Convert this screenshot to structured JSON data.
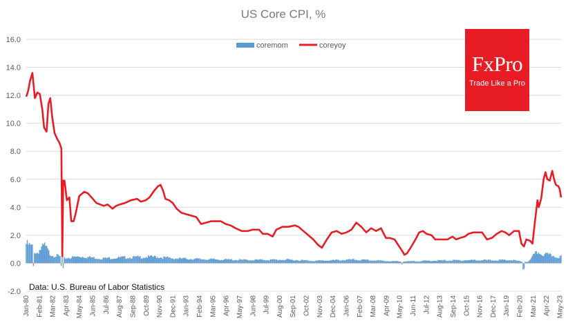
{
  "chart_data": {
    "type": "bar+line",
    "title": "US Core CPI, %",
    "source": "Data: U.S. Bureau of Labor Statistics",
    "ylim": [
      -2.0,
      16.0
    ],
    "yticks": [
      "-2.0",
      "0.0",
      "2.0",
      "4.0",
      "6.0",
      "8.0",
      "10.0",
      "12.0",
      "14.0",
      "16.0"
    ],
    "xticks": [
      "Jan-80",
      "Feb-81",
      "Mar-82",
      "Apr-83",
      "May-84",
      "Jun-85",
      "Jul-86",
      "Aug-87",
      "Sep-88",
      "Oct-89",
      "Nov-90",
      "Dec-91",
      "Jan-93",
      "Feb-94",
      "Mar-95",
      "Apr-96",
      "May-97",
      "Jun-98",
      "Jul-99",
      "Aug-00",
      "Sep-01",
      "Oct-02",
      "Nov-03",
      "Dec-04",
      "Jan-06",
      "Feb-07",
      "Mar-08",
      "Apr-09",
      "May-10",
      "Jun-11",
      "Jul-12",
      "Aug-13",
      "Sep-14",
      "Oct-15",
      "Nov-16",
      "Dec-17",
      "Jan-19",
      "Feb-20",
      "Mar-21",
      "Apr-22",
      "May-23"
    ],
    "legend_position": "top-center",
    "grid": "horizontal",
    "colors": {
      "coremom": "#5b9bd5",
      "coreyoy": "#e81c24"
    },
    "series": [
      {
        "name": "coremom",
        "type": "bar",
        "anchors": [
          [
            1980.0,
            1.2
          ],
          [
            1980.5,
            1.0
          ],
          [
            1980.8,
            0.6
          ],
          [
            1981.2,
            0.9
          ],
          [
            1981.5,
            1.1
          ],
          [
            1981.9,
            0.6
          ],
          [
            1982.2,
            0.5
          ],
          [
            1982.6,
            0.45
          ],
          [
            1983.0,
            0.3
          ],
          [
            1983.5,
            0.35
          ],
          [
            1984.5,
            0.42
          ],
          [
            1986.0,
            0.3
          ],
          [
            1988.0,
            0.36
          ],
          [
            1990.5,
            0.4
          ],
          [
            1992.0,
            0.3
          ],
          [
            1995.0,
            0.24
          ],
          [
            1998.0,
            0.2
          ],
          [
            2001.0,
            0.22
          ],
          [
            2003.5,
            0.15
          ],
          [
            2006.5,
            0.22
          ],
          [
            2009.0,
            0.15
          ],
          [
            2010.5,
            0.1
          ],
          [
            2013.0,
            0.16
          ],
          [
            2016.0,
            0.19
          ],
          [
            2019.5,
            0.19
          ],
          [
            2020.2,
            0.1
          ],
          [
            2020.8,
            0.1
          ],
          [
            2021.2,
            0.5
          ],
          [
            2021.5,
            0.7
          ],
          [
            2022.0,
            0.55
          ],
          [
            2022.5,
            0.5
          ],
          [
            2023.0,
            0.42
          ],
          [
            2023.4,
            0.4
          ]
        ],
        "negatives": [
          [
            1980.6,
            -0.2
          ],
          [
            1982.8,
            -0.2
          ],
          [
            1983.0,
            -0.35
          ],
          [
            2010.5,
            -0.1
          ],
          [
            2020.3,
            -0.45
          ],
          [
            2020.4,
            -0.4
          ]
        ]
      },
      {
        "name": "coreyoy",
        "type": "line",
        "points": [
          [
            1980.0,
            11.9
          ],
          [
            1980.15,
            12.3
          ],
          [
            1980.3,
            13.0
          ],
          [
            1980.5,
            13.6
          ],
          [
            1980.7,
            11.8
          ],
          [
            1980.9,
            12.2
          ],
          [
            1981.1,
            12.1
          ],
          [
            1981.3,
            11.0
          ],
          [
            1981.45,
            9.7
          ],
          [
            1981.65,
            9.4
          ],
          [
            1981.8,
            11.4
          ],
          [
            1981.95,
            11.8
          ],
          [
            1982.1,
            10.5
          ],
          [
            1982.3,
            9.3
          ],
          [
            1982.5,
            8.9
          ],
          [
            1982.7,
            8.6
          ],
          [
            1982.85,
            8.2
          ],
          [
            1982.93,
            0.5
          ],
          [
            1983.0,
            5.9
          ],
          [
            1983.1,
            5.9
          ],
          [
            1983.3,
            4.5
          ],
          [
            1983.5,
            4.7
          ],
          [
            1983.65,
            3.0
          ],
          [
            1983.85,
            3.0
          ],
          [
            1984.0,
            3.5
          ],
          [
            1984.3,
            4.8
          ],
          [
            1984.7,
            5.1
          ],
          [
            1985.0,
            5.0
          ],
          [
            1985.3,
            4.7
          ],
          [
            1985.7,
            4.3
          ],
          [
            1986.0,
            4.2
          ],
          [
            1986.3,
            4.1
          ],
          [
            1986.6,
            4.2
          ],
          [
            1987.0,
            3.9
          ],
          [
            1987.3,
            4.1
          ],
          [
            1987.6,
            4.2
          ],
          [
            1988.0,
            4.3
          ],
          [
            1988.5,
            4.5
          ],
          [
            1989.0,
            4.6
          ],
          [
            1989.3,
            4.4
          ],
          [
            1989.7,
            4.5
          ],
          [
            1990.0,
            4.7
          ],
          [
            1990.4,
            5.2
          ],
          [
            1990.7,
            5.5
          ],
          [
            1990.9,
            5.6
          ],
          [
            1991.1,
            5.2
          ],
          [
            1991.3,
            4.6
          ],
          [
            1991.6,
            4.5
          ],
          [
            1991.9,
            4.3
          ],
          [
            1992.2,
            3.9
          ],
          [
            1992.6,
            3.6
          ],
          [
            1993.0,
            3.5
          ],
          [
            1993.4,
            3.4
          ],
          [
            1993.8,
            3.3
          ],
          [
            1994.2,
            2.8
          ],
          [
            1994.6,
            2.9
          ],
          [
            1995.0,
            3.0
          ],
          [
            1995.4,
            3.0
          ],
          [
            1995.8,
            3.0
          ],
          [
            1996.2,
            2.8
          ],
          [
            1996.6,
            2.7
          ],
          [
            1997.0,
            2.5
          ],
          [
            1997.5,
            2.3
          ],
          [
            1998.0,
            2.3
          ],
          [
            1998.4,
            2.4
          ],
          [
            1998.9,
            2.4
          ],
          [
            1999.2,
            2.1
          ],
          [
            1999.6,
            2.1
          ],
          [
            2000.0,
            1.9
          ],
          [
            2000.3,
            2.4
          ],
          [
            2000.8,
            2.6
          ],
          [
            2001.3,
            2.6
          ],
          [
            2001.8,
            2.7
          ],
          [
            2002.1,
            2.6
          ],
          [
            2002.5,
            2.3
          ],
          [
            2002.9,
            2.0
          ],
          [
            2003.3,
            1.7
          ],
          [
            2003.7,
            1.3
          ],
          [
            2004.0,
            1.1
          ],
          [
            2004.4,
            1.7
          ],
          [
            2004.8,
            2.2
          ],
          [
            2005.2,
            2.3
          ],
          [
            2005.6,
            2.1
          ],
          [
            2006.0,
            2.2
          ],
          [
            2006.4,
            2.4
          ],
          [
            2006.8,
            2.9
          ],
          [
            2007.2,
            2.6
          ],
          [
            2007.6,
            2.2
          ],
          [
            2008.0,
            2.5
          ],
          [
            2008.4,
            2.3
          ],
          [
            2008.8,
            2.5
          ],
          [
            2009.2,
            1.8
          ],
          [
            2009.5,
            1.8
          ],
          [
            2009.9,
            1.7
          ],
          [
            2010.2,
            1.3
          ],
          [
            2010.5,
            0.9
          ],
          [
            2010.7,
            0.6
          ],
          [
            2010.9,
            0.7
          ],
          [
            2011.2,
            1.1
          ],
          [
            2011.6,
            1.7
          ],
          [
            2011.9,
            2.2
          ],
          [
            2012.2,
            2.3
          ],
          [
            2012.5,
            2.1
          ],
          [
            2012.9,
            2.0
          ],
          [
            2013.2,
            1.7
          ],
          [
            2013.6,
            1.7
          ],
          [
            2013.9,
            1.7
          ],
          [
            2014.2,
            1.7
          ],
          [
            2014.6,
            1.9
          ],
          [
            2014.9,
            1.7
          ],
          [
            2015.2,
            1.8
          ],
          [
            2015.6,
            1.9
          ],
          [
            2015.9,
            2.1
          ],
          [
            2016.3,
            2.2
          ],
          [
            2016.7,
            2.2
          ],
          [
            2017.0,
            2.2
          ],
          [
            2017.4,
            1.7
          ],
          [
            2017.8,
            1.8
          ],
          [
            2018.2,
            2.1
          ],
          [
            2018.6,
            2.3
          ],
          [
            2018.9,
            2.2
          ],
          [
            2019.2,
            2.0
          ],
          [
            2019.6,
            2.3
          ],
          [
            2020.0,
            2.3
          ],
          [
            2020.2,
            1.4
          ],
          [
            2020.4,
            1.2
          ],
          [
            2020.6,
            1.7
          ],
          [
            2020.9,
            1.6
          ],
          [
            2021.1,
            1.4
          ],
          [
            2021.3,
            3.0
          ],
          [
            2021.5,
            4.5
          ],
          [
            2021.6,
            4.0
          ],
          [
            2021.8,
            4.6
          ],
          [
            2022.0,
            6.0
          ],
          [
            2022.15,
            6.5
          ],
          [
            2022.3,
            6.0
          ],
          [
            2022.5,
            5.9
          ],
          [
            2022.7,
            6.6
          ],
          [
            2022.85,
            6.0
          ],
          [
            2023.0,
            5.6
          ],
          [
            2023.2,
            5.5
          ],
          [
            2023.3,
            5.3
          ],
          [
            2023.42,
            4.7
          ]
        ]
      }
    ]
  },
  "logo": {
    "name": "FxPro",
    "tagline": "Trade Like a Pro"
  }
}
